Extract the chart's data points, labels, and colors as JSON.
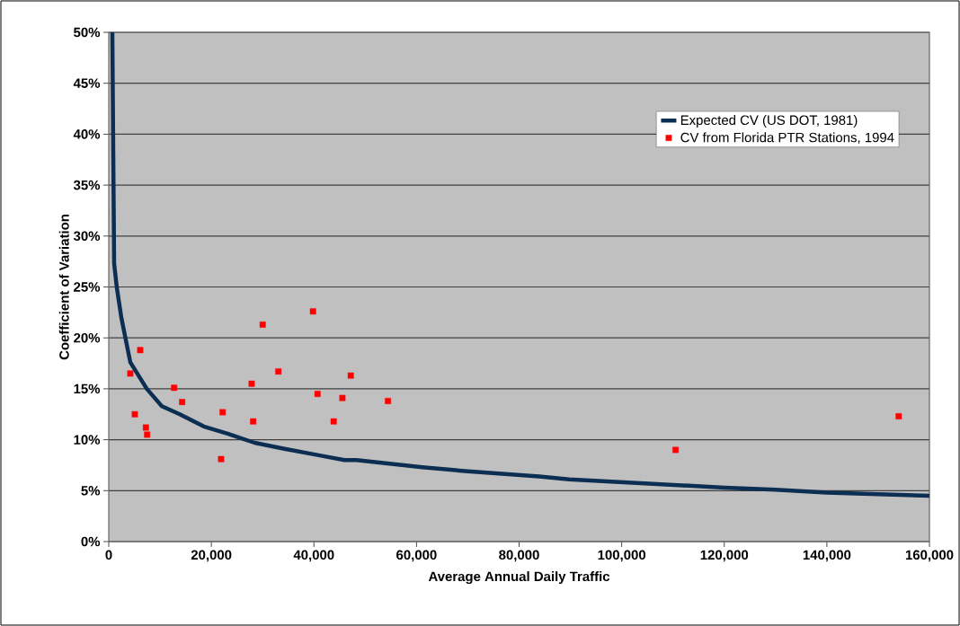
{
  "chart_data": {
    "type": "line",
    "xlabel": "Average Annual Daily Traffic",
    "ylabel": "Coefficient of Variation",
    "xlim": [
      0,
      160000
    ],
    "ylim": [
      0,
      50
    ],
    "xticks": [
      {
        "value": 0,
        "label": "0"
      },
      {
        "value": 20000,
        "label": "20,000"
      },
      {
        "value": 40000,
        "label": "40,000"
      },
      {
        "value": 60000,
        "label": "60,000"
      },
      {
        "value": 80000,
        "label": "80,000"
      },
      {
        "value": 100000,
        "label": "100,000"
      },
      {
        "value": 120000,
        "label": "120,000"
      },
      {
        "value": 140000,
        "label": "140,000"
      },
      {
        "value": 160000,
        "label": "160,000"
      }
    ],
    "yticks": [
      {
        "value": 0,
        "label": "0%"
      },
      {
        "value": 5,
        "label": "5%"
      },
      {
        "value": 10,
        "label": "10%"
      },
      {
        "value": 15,
        "label": "15%"
      },
      {
        "value": 20,
        "label": "20%"
      },
      {
        "value": 25,
        "label": "25%"
      },
      {
        "value": 30,
        "label": "30%"
      },
      {
        "value": 35,
        "label": "35%"
      },
      {
        "value": 40,
        "label": "40%"
      },
      {
        "value": 45,
        "label": "45%"
      },
      {
        "value": 50,
        "label": "50%"
      }
    ],
    "grid": "y",
    "legend": "top right",
    "series": [
      {
        "name": "Expected CV (US DOT, 1981)",
        "color": "#0b2e52",
        "marker": "none",
        "x": [
          700,
          880,
          1050,
          1580,
          2450,
          4200,
          7410,
          10340,
          13840,
          18520,
          23180,
          28430,
          34280,
          40700,
          45950,
          48290,
          61150,
          70000,
          83920,
          89760,
          120100,
          130000,
          140000,
          160000
        ],
        "values": [
          50,
          38,
          27.3,
          24.9,
          22.0,
          17.6,
          15.0,
          13.3,
          12.5,
          11.3,
          10.6,
          9.7,
          9.1,
          8.5,
          8.0,
          8.0,
          7.3,
          6.9,
          6.4,
          6.1,
          5.3,
          5.1,
          4.8,
          4.5
        ]
      },
      {
        "name": "CV from Florida PTR Stations, 1994",
        "type": "scatter",
        "color": "#ff0000",
        "marker": "square",
        "x": [
          4200,
          5080,
          6130,
          7240,
          7480,
          12740,
          14310,
          21900,
          22200,
          27860,
          28150,
          30010,
          33060,
          39820,
          40700,
          43850,
          45550,
          47180,
          54430,
          110500,
          154000
        ],
        "values": [
          16.5,
          12.5,
          18.8,
          11.2,
          10.5,
          15.1,
          13.7,
          8.1,
          12.7,
          15.5,
          11.8,
          21.3,
          16.7,
          22.6,
          14.5,
          11.8,
          14.1,
          16.3,
          13.8,
          9.0,
          12.3
        ]
      }
    ]
  }
}
